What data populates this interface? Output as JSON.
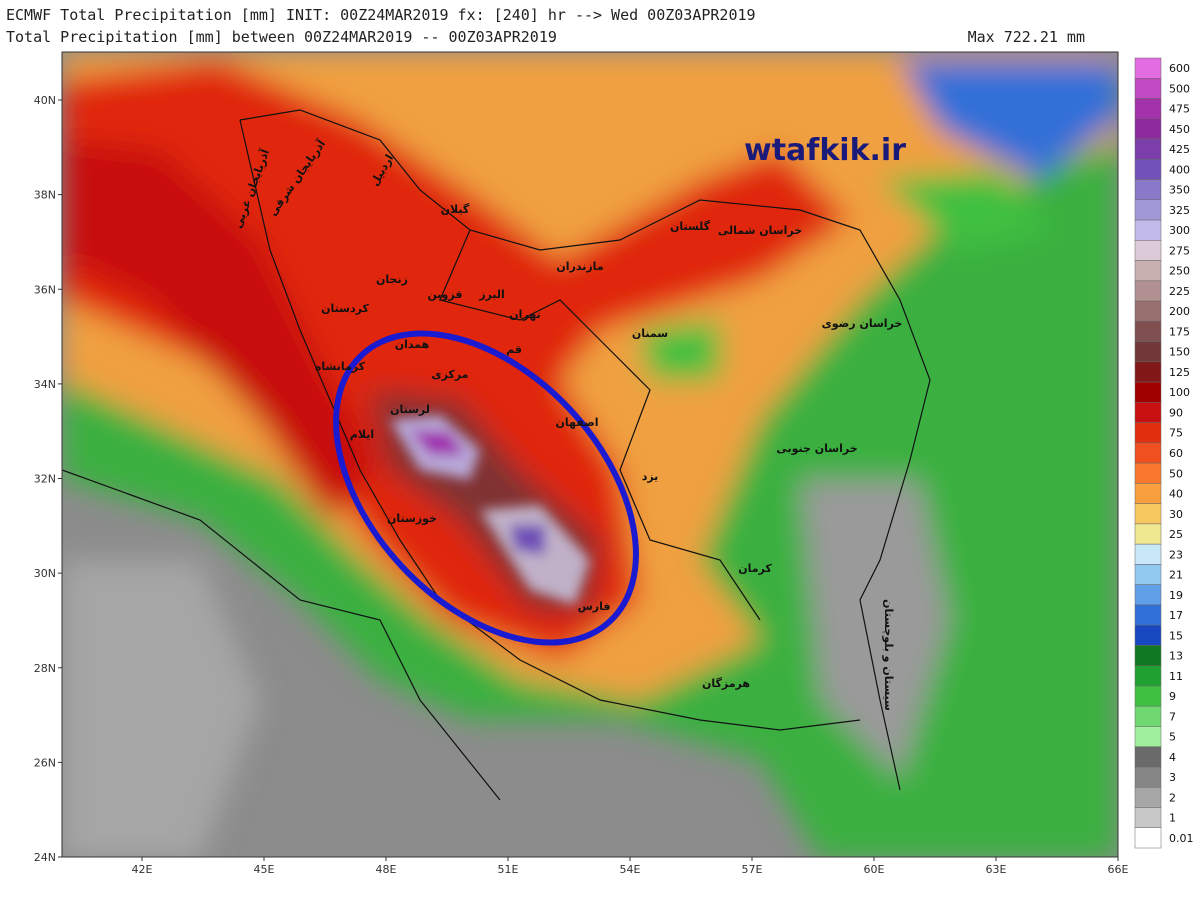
{
  "header": {
    "line1": "ECMWF Total Precipitation [mm] INIT: 00Z24MAR2019 fx: [240] hr --> Wed 00Z03APR2019",
    "line2": "Total Precipitation [mm] between 00Z24MAR2019 -- 00Z03APR2019",
    "max": "Max 722.21 mm"
  },
  "watermark": "wtafkik.ir",
  "lat_labels": [
    "40N",
    "38N",
    "36N",
    "34N",
    "32N",
    "30N",
    "28N",
    "26N",
    "24N"
  ],
  "lon_labels": [
    "42E",
    "45E",
    "48E",
    "51E",
    "54E",
    "57E",
    "60E",
    "63E",
    "66E"
  ],
  "colorbar": {
    "levels": [
      "600",
      "500",
      "475",
      "450",
      "425",
      "400",
      "350",
      "325",
      "300",
      "275",
      "250",
      "225",
      "200",
      "175",
      "150",
      "125",
      "100",
      "90",
      "75",
      "60",
      "50",
      "40",
      "30",
      "25",
      "23",
      "21",
      "19",
      "17",
      "15",
      "13",
      "11",
      "9",
      "7",
      "5",
      "4",
      "3",
      "2",
      "1",
      "0.01"
    ],
    "colors": [
      "#e46ce2",
      "#c24ac2",
      "#a432aa",
      "#8e2c9e",
      "#7c3eaa",
      "#7252ba",
      "#8a78c8",
      "#a29ad8",
      "#c2bae8",
      "#dccad8",
      "#c8b0b0",
      "#b09090",
      "#987070",
      "#805050",
      "#703838",
      "#801818",
      "#a00000",
      "#c81010",
      "#e03010",
      "#f05020",
      "#f87830",
      "#f8a040",
      "#f8c860",
      "#f0e890",
      "#c8e8f8",
      "#90c8f0",
      "#60a0e8",
      "#3070d8",
      "#1848c0",
      "#107820",
      "#20a030",
      "#40c040",
      "#70d870",
      "#a0f0a0",
      "#6a6a6a",
      "#868686",
      "#a6a6a6",
      "#c8c8c8",
      "#ffffff"
    ]
  },
  "labels": [
    "آذربایجان غربی",
    "آذربایجان شرقی",
    "اردبیل",
    "گیلان",
    "مازندران",
    "گلستان",
    "خراسان شمالی",
    "زنجان",
    "قزوین",
    "البرز",
    "تهران",
    "کردستان",
    "همدان",
    "قم",
    "سمنان",
    "خراسان رضوی",
    "کرمانشاه",
    "مرکزی",
    "لرستان",
    "اصفهان",
    "ایلام",
    "خراسان جنوبی",
    "یزد",
    "خوزستان",
    "کرمان",
    "سیستان و بلوچستان",
    "فارس",
    "هرمزگان"
  ]
}
